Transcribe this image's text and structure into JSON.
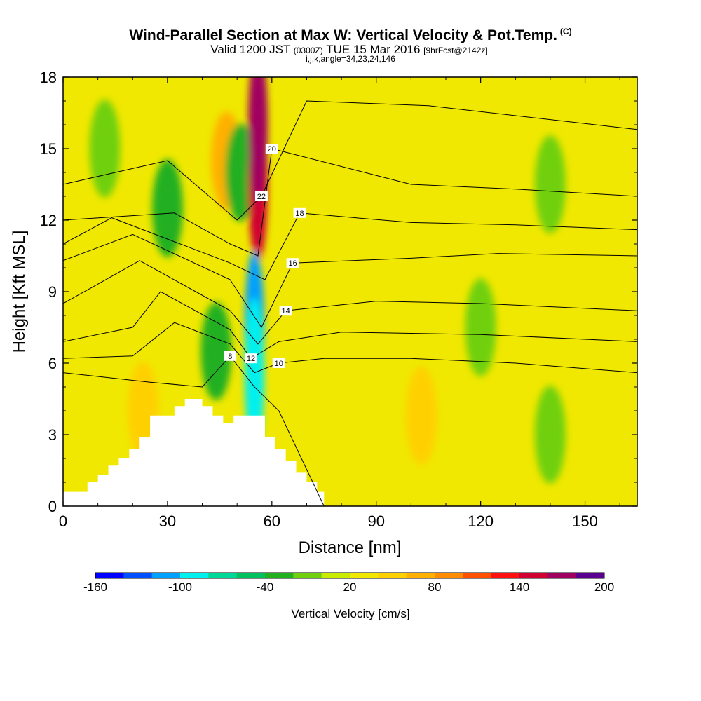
{
  "title_main": "Wind-Parallel Section at Max W: Vertical Velocity & Pot.Temp.",
  "title_mark": "(C)",
  "sub_valid": "Valid 1200 JST",
  "sub_utc": "(0300Z)",
  "sub_date": "TUE 15 Mar 2016",
  "sub_fcst": "[9hrFcst@2142z]",
  "sub_index": "i,j,k,angle=34,23,24,146",
  "chart_data": {
    "type": "heatmap",
    "xlabel": "Distance [nm]",
    "ylabel": "Height [Kft MSL]",
    "xlim": [
      0,
      165
    ],
    "ylim": [
      0,
      18
    ],
    "x_ticks": [
      "0",
      "30",
      "60",
      "90",
      "120",
      "150"
    ],
    "y_ticks": [
      "0",
      "3",
      "6",
      "9",
      "12",
      "15",
      "18"
    ],
    "background_value": 20,
    "colorbar": {
      "label": "Vertical Velocity [cm/s]",
      "tick_labels": [
        "-160",
        "-100",
        "-40",
        "20",
        "80",
        "140",
        "200"
      ],
      "colors": [
        "#0000ff",
        "#0050ff",
        "#00a0ff",
        "#00f0f0",
        "#00d898",
        "#00c060",
        "#20b020",
        "#70d010",
        "#c8ec00",
        "#f0e800",
        "#ffd000",
        "#ffb000",
        "#ff8c00",
        "#ff5000",
        "#ff1010",
        "#d00030",
        "#a00060",
        "#5a0090"
      ]
    },
    "velocity_features": [
      {
        "x": 12,
        "y": 15.0,
        "value": -10
      },
      {
        "x": 30,
        "y": 12.5,
        "value": -25
      },
      {
        "x": 47,
        "y": 14.5,
        "value": 60
      },
      {
        "x": 51,
        "y": 14.0,
        "value": -40
      },
      {
        "x": 56,
        "y": 13.5,
        "value": 150
      },
      {
        "x": 56,
        "y": 16.0,
        "value": 170
      },
      {
        "x": 55,
        "y": 7.5,
        "value": -120
      },
      {
        "x": 55,
        "y": 5.5,
        "value": -90
      },
      {
        "x": 44,
        "y": 6.5,
        "value": -30
      },
      {
        "x": 23,
        "y": 4.0,
        "value": 40
      },
      {
        "x": 103,
        "y": 3.8,
        "value": 45
      },
      {
        "x": 140,
        "y": 13.5,
        "value": -10
      },
      {
        "x": 120,
        "y": 7.5,
        "value": -10
      },
      {
        "x": 140,
        "y": 3.0,
        "value": -10
      }
    ],
    "terrain": [
      {
        "x": 0,
        "h": 0.6
      },
      {
        "x": 7,
        "h": 1.0
      },
      {
        "x": 10,
        "h": 1.3
      },
      {
        "x": 13,
        "h": 1.7
      },
      {
        "x": 16,
        "h": 2.0
      },
      {
        "x": 19,
        "h": 2.4
      },
      {
        "x": 22,
        "h": 2.9
      },
      {
        "x": 25,
        "h": 3.8
      },
      {
        "x": 32,
        "h": 4.2
      },
      {
        "x": 35,
        "h": 4.5
      },
      {
        "x": 40,
        "h": 4.2
      },
      {
        "x": 43,
        "h": 3.8
      },
      {
        "x": 46,
        "h": 3.5
      },
      {
        "x": 49,
        "h": 3.8
      },
      {
        "x": 58,
        "h": 2.9
      },
      {
        "x": 61,
        "h": 2.4
      },
      {
        "x": 64,
        "h": 1.9
      },
      {
        "x": 67,
        "h": 1.4
      },
      {
        "x": 70,
        "h": 1.0
      },
      {
        "x": 73,
        "h": 0.6
      },
      {
        "x": 75,
        "h": 0.0
      }
    ],
    "isentropes": [
      {
        "label": "8",
        "pts": [
          [
            0,
            5.6
          ],
          [
            25,
            5.2
          ],
          [
            40,
            5.0
          ],
          [
            48,
            6.3
          ],
          [
            55,
            5.0
          ],
          [
            62,
            4.0
          ],
          [
            75,
            0
          ]
        ]
      },
      {
        "label": "10",
        "pts": [
          [
            0,
            6.2
          ],
          [
            20,
            6.3
          ],
          [
            32,
            7.7
          ],
          [
            48,
            6.8
          ],
          [
            55,
            5.6
          ],
          [
            62,
            6.0
          ],
          [
            75,
            6.2
          ],
          [
            100,
            6.2
          ],
          [
            130,
            6.0
          ],
          [
            165,
            5.6
          ]
        ]
      },
      {
        "label": "12",
        "pts": [
          [
            0,
            6.9
          ],
          [
            20,
            7.5
          ],
          [
            28,
            9.0
          ],
          [
            48,
            7.4
          ],
          [
            54,
            6.2
          ],
          [
            62,
            6.9
          ],
          [
            80,
            7.3
          ],
          [
            120,
            7.2
          ],
          [
            165,
            6.9
          ]
        ]
      },
      {
        "label": "14",
        "pts": [
          [
            0,
            8.5
          ],
          [
            22,
            10.3
          ],
          [
            48,
            8.2
          ],
          [
            56,
            6.8
          ],
          [
            64,
            8.2
          ],
          [
            90,
            8.6
          ],
          [
            120,
            8.5
          ],
          [
            165,
            8.2
          ]
        ]
      },
      {
        "label": "16",
        "pts": [
          [
            0,
            10.3
          ],
          [
            20,
            11.4
          ],
          [
            48,
            9.5
          ],
          [
            57,
            7.5
          ],
          [
            66,
            10.2
          ],
          [
            100,
            10.4
          ],
          [
            125,
            10.6
          ],
          [
            165,
            10.5
          ]
        ]
      },
      {
        "label": "18",
        "pts": [
          [
            0,
            11.0
          ],
          [
            14,
            12.1
          ],
          [
            48,
            10.2
          ],
          [
            58,
            9.5
          ],
          [
            68,
            12.3
          ],
          [
            100,
            11.9
          ],
          [
            130,
            11.8
          ],
          [
            165,
            11.6
          ]
        ]
      },
      {
        "label": "20",
        "pts": [
          [
            0,
            12.0
          ],
          [
            32,
            12.3
          ],
          [
            48,
            11.0
          ],
          [
            56,
            10.5
          ],
          [
            60,
            15.0
          ],
          [
            100,
            13.5
          ],
          [
            130,
            13.3
          ],
          [
            165,
            13.0
          ]
        ]
      },
      {
        "label": "22",
        "pts": [
          [
            0,
            13.5
          ],
          [
            30,
            14.5
          ],
          [
            50,
            12.0
          ],
          [
            57,
            13.0
          ],
          [
            70,
            17.0
          ],
          [
            105,
            16.8
          ],
          [
            165,
            15.8
          ]
        ]
      }
    ]
  }
}
